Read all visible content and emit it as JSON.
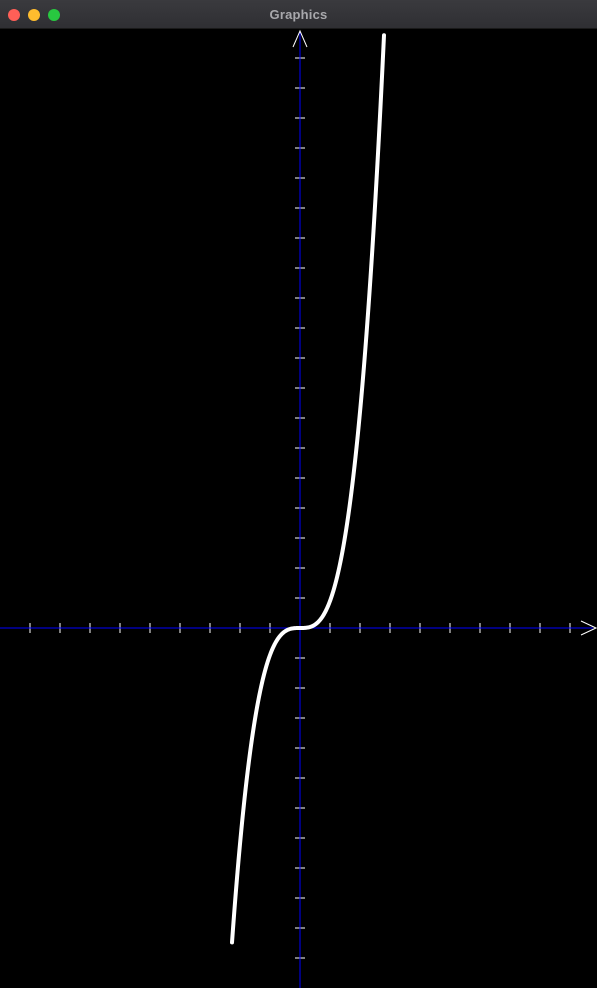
{
  "window": {
    "title": "Graphics",
    "buttons": {
      "close_color": "#ff5f57",
      "minimize_color": "#febc2e",
      "zoom_color": "#28c840"
    }
  },
  "graph": {
    "background_color": "#000000",
    "axis_color": "#0000ff",
    "tick_color": "#ffffff",
    "curve_color": "#ffffff",
    "function": "y = x^3"
  }
}
